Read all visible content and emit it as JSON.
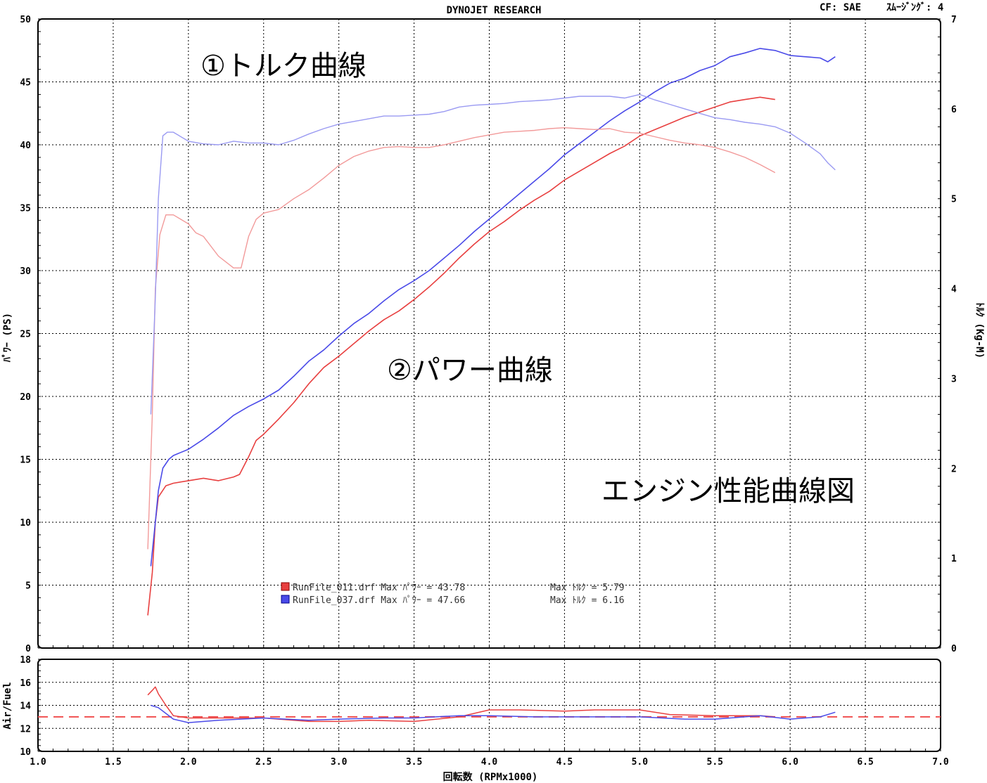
{
  "header": {
    "title": "DYNOJET RESEARCH",
    "cf": "CF: SAE",
    "smoothing": "ｽﾑｰｼﾞﾝｸﾞ: 4"
  },
  "annotations": {
    "torque_curve": "①トルク曲線",
    "power_curve": "②パワー曲線",
    "figure_title": "エンジン性能曲線図"
  },
  "legend": [
    {
      "file": "RunFile_011.drf",
      "text": "RunFile_011.drf Max ﾊﾟﾜｰ = 43.78",
      "torque_text": "Max ﾄﾙｸ = 5.79",
      "color": "#e84040"
    },
    {
      "file": "RunFile_037.drf",
      "text": "RunFile_037.drf Max ﾊﾟﾜｰ = 47.66",
      "torque_text": "Max ﾄﾙｸ = 6.16",
      "color": "#4a4ae8"
    }
  ],
  "chart_data": [
    {
      "type": "line",
      "title": "DYNOJET RESEARCH",
      "xlabel": "回転数 (RPMx1000)",
      "ylabel": "ﾊﾟﾜｰ (PS)",
      "y2label": "ﾄﾙｸ (Kg-M)",
      "xlim": [
        1.0,
        7.0
      ],
      "ylim": [
        0,
        50
      ],
      "y2lim": [
        0,
        7
      ],
      "x_ticks": [
        "1.0",
        "1.5",
        "2.0",
        "2.5",
        "3.0",
        "3.5",
        "4.0",
        "4.5",
        "5.0",
        "5.5",
        "6.0",
        "6.5",
        "7.0"
      ],
      "y_ticks": [
        "0",
        "5",
        "10",
        "15",
        "20",
        "25",
        "30",
        "35",
        "40",
        "45",
        "50"
      ],
      "y2_ticks": [
        "0",
        "1",
        "2",
        "3",
        "4",
        "5",
        "6",
        "7"
      ],
      "grid": true,
      "series": [
        {
          "name": "RunFile_011.drf",
          "quantity": "power",
          "axis": "left",
          "color": "#e84040",
          "x": [
            1.73,
            1.76,
            1.78,
            1.8,
            1.85,
            1.9,
            2.0,
            2.1,
            2.2,
            2.3,
            2.34,
            2.4,
            2.45,
            2.5,
            2.6,
            2.7,
            2.8,
            2.9,
            3.0,
            3.1,
            3.2,
            3.3,
            3.4,
            3.5,
            3.6,
            3.7,
            3.8,
            3.9,
            4.0,
            4.1,
            4.2,
            4.3,
            4.4,
            4.5,
            4.6,
            4.7,
            4.8,
            4.9,
            5.0,
            5.1,
            5.2,
            5.3,
            5.4,
            5.5,
            5.6,
            5.7,
            5.8,
            5.9
          ],
          "values": [
            2.6,
            6,
            10,
            12,
            12.9,
            13.1,
            13.3,
            13.5,
            13.3,
            13.6,
            13.8,
            15.2,
            16.5,
            17.0,
            18.2,
            19.5,
            21.0,
            22.3,
            23.2,
            24.2,
            25.2,
            26.1,
            26.8,
            27.7,
            28.7,
            29.8,
            31.0,
            32.1,
            33.1,
            33.9,
            34.8,
            35.6,
            36.3,
            37.2,
            37.9,
            38.6,
            39.3,
            39.9,
            40.7,
            41.2,
            41.7,
            42.2,
            42.6,
            43.0,
            43.4,
            43.6,
            43.78,
            43.6
          ]
        },
        {
          "name": "RunFile_037.drf",
          "quantity": "power",
          "axis": "left",
          "color": "#4a4ae8",
          "x": [
            1.75,
            1.78,
            1.8,
            1.83,
            1.87,
            1.9,
            2.0,
            2.1,
            2.2,
            2.3,
            2.4,
            2.5,
            2.6,
            2.7,
            2.8,
            2.9,
            3.0,
            3.1,
            3.2,
            3.3,
            3.4,
            3.5,
            3.6,
            3.7,
            3.8,
            3.9,
            4.0,
            4.1,
            4.2,
            4.3,
            4.4,
            4.5,
            4.6,
            4.7,
            4.8,
            4.9,
            5.0,
            5.1,
            5.2,
            5.3,
            5.4,
            5.5,
            5.6,
            5.7,
            5.8,
            5.9,
            6.0,
            6.1,
            6.2,
            6.25,
            6.3
          ],
          "values": [
            6.5,
            10,
            12.5,
            14.3,
            15.0,
            15.3,
            15.8,
            16.6,
            17.5,
            18.5,
            19.2,
            19.8,
            20.5,
            21.6,
            22.8,
            23.7,
            24.8,
            25.8,
            26.6,
            27.6,
            28.5,
            29.2,
            30.0,
            31.0,
            32.0,
            33.1,
            34.1,
            35.1,
            36.1,
            37.1,
            38.1,
            39.2,
            40.1,
            41.0,
            41.9,
            42.7,
            43.4,
            44.2,
            44.9,
            45.3,
            45.9,
            46.3,
            47.0,
            47.3,
            47.66,
            47.5,
            47.1,
            47.0,
            46.9,
            46.6,
            47.0
          ]
        },
        {
          "name": "RunFile_011.drf",
          "quantity": "torque",
          "axis": "right",
          "color": "#f29a9a",
          "x": [
            1.73,
            1.76,
            1.78,
            1.81,
            1.85,
            1.9,
            2.0,
            2.05,
            2.1,
            2.2,
            2.3,
            2.35,
            2.4,
            2.45,
            2.5,
            2.6,
            2.7,
            2.8,
            2.9,
            3.0,
            3.1,
            3.2,
            3.3,
            3.4,
            3.5,
            3.6,
            3.7,
            3.8,
            3.9,
            4.0,
            4.1,
            4.2,
            4.3,
            4.4,
            4.5,
            4.6,
            4.7,
            4.8,
            4.9,
            5.0,
            5.1,
            5.2,
            5.3,
            5.4,
            5.5,
            5.6,
            5.7,
            5.8,
            5.9
          ],
          "values": [
            1.1,
            2.6,
            4.0,
            4.6,
            4.82,
            4.82,
            4.72,
            4.62,
            4.58,
            4.36,
            4.23,
            4.23,
            4.58,
            4.77,
            4.84,
            4.88,
            5.0,
            5.1,
            5.23,
            5.37,
            5.47,
            5.53,
            5.57,
            5.58,
            5.57,
            5.57,
            5.6,
            5.64,
            5.68,
            5.71,
            5.74,
            5.75,
            5.76,
            5.78,
            5.79,
            5.78,
            5.77,
            5.78,
            5.74,
            5.73,
            5.69,
            5.65,
            5.62,
            5.6,
            5.57,
            5.52,
            5.46,
            5.38,
            5.29
          ]
        },
        {
          "name": "RunFile_037.drf",
          "quantity": "torque",
          "axis": "right",
          "color": "#9a9af2",
          "x": [
            1.75,
            1.78,
            1.8,
            1.83,
            1.86,
            1.9,
            2.0,
            2.1,
            2.2,
            2.3,
            2.4,
            2.5,
            2.6,
            2.7,
            2.8,
            2.9,
            3.0,
            3.1,
            3.2,
            3.3,
            3.4,
            3.5,
            3.6,
            3.7,
            3.8,
            3.9,
            4.0,
            4.1,
            4.2,
            4.3,
            4.4,
            4.5,
            4.6,
            4.7,
            4.8,
            4.9,
            5.0,
            5.1,
            5.2,
            5.3,
            5.4,
            5.5,
            5.6,
            5.7,
            5.8,
            5.9,
            6.0,
            6.1,
            6.2,
            6.25,
            6.3
          ],
          "values": [
            2.6,
            3.9,
            5.0,
            5.7,
            5.74,
            5.74,
            5.64,
            5.61,
            5.6,
            5.64,
            5.62,
            5.62,
            5.6,
            5.65,
            5.72,
            5.78,
            5.83,
            5.86,
            5.89,
            5.92,
            5.92,
            5.93,
            5.94,
            5.97,
            6.02,
            6.04,
            6.05,
            6.06,
            6.08,
            6.09,
            6.1,
            6.12,
            6.14,
            6.14,
            6.14,
            6.12,
            6.16,
            6.1,
            6.05,
            6.0,
            5.95,
            5.9,
            5.88,
            5.85,
            5.83,
            5.8,
            5.73,
            5.62,
            5.5,
            5.4,
            5.32
          ]
        }
      ]
    },
    {
      "type": "line",
      "xlabel": "回転数 (RPMx1000)",
      "ylabel": "Air/Fuel",
      "xlim": [
        1.0,
        7.0
      ],
      "ylim": [
        10,
        18
      ],
      "x_ticks": [
        "1.0",
        "1.5",
        "2.0",
        "2.5",
        "3.0",
        "3.5",
        "4.0",
        "4.5",
        "5.0",
        "5.5",
        "6.0",
        "6.5",
        "7.0"
      ],
      "y_ticks": [
        "10",
        "12",
        "14",
        "16",
        "18"
      ],
      "grid": true,
      "reference_line": {
        "value": 13.0,
        "color": "#f05050",
        "style": "dashed"
      },
      "series": [
        {
          "name": "RunFile_011.drf",
          "color": "#e84040",
          "x": [
            1.73,
            1.76,
            1.78,
            1.8,
            1.85,
            1.9,
            2.0,
            2.2,
            2.5,
            2.8,
            3.0,
            3.2,
            3.5,
            3.8,
            4.0,
            4.2,
            4.5,
            4.7,
            5.0,
            5.2,
            5.5,
            5.8,
            5.9
          ],
          "values": [
            14.9,
            15.3,
            15.6,
            15.0,
            14.0,
            13.1,
            12.9,
            12.9,
            12.9,
            12.6,
            12.6,
            12.7,
            12.6,
            13.0,
            13.6,
            13.6,
            13.5,
            13.6,
            13.6,
            13.2,
            13.1,
            13.1,
            13.0
          ]
        },
        {
          "name": "RunFile_037.drf",
          "color": "#4a4ae8",
          "x": [
            1.75,
            1.8,
            1.85,
            1.9,
            2.0,
            2.2,
            2.5,
            2.8,
            3.0,
            3.3,
            3.5,
            3.8,
            4.0,
            4.3,
            4.5,
            4.8,
            5.0,
            5.3,
            5.5,
            5.8,
            6.0,
            6.2,
            6.3
          ],
          "values": [
            14.0,
            13.8,
            13.3,
            12.8,
            12.5,
            12.7,
            12.9,
            12.7,
            12.8,
            12.9,
            12.9,
            13.1,
            13.1,
            13.0,
            13.0,
            13.0,
            13.0,
            12.8,
            12.8,
            13.1,
            12.8,
            13.0,
            13.4
          ]
        }
      ]
    }
  ]
}
